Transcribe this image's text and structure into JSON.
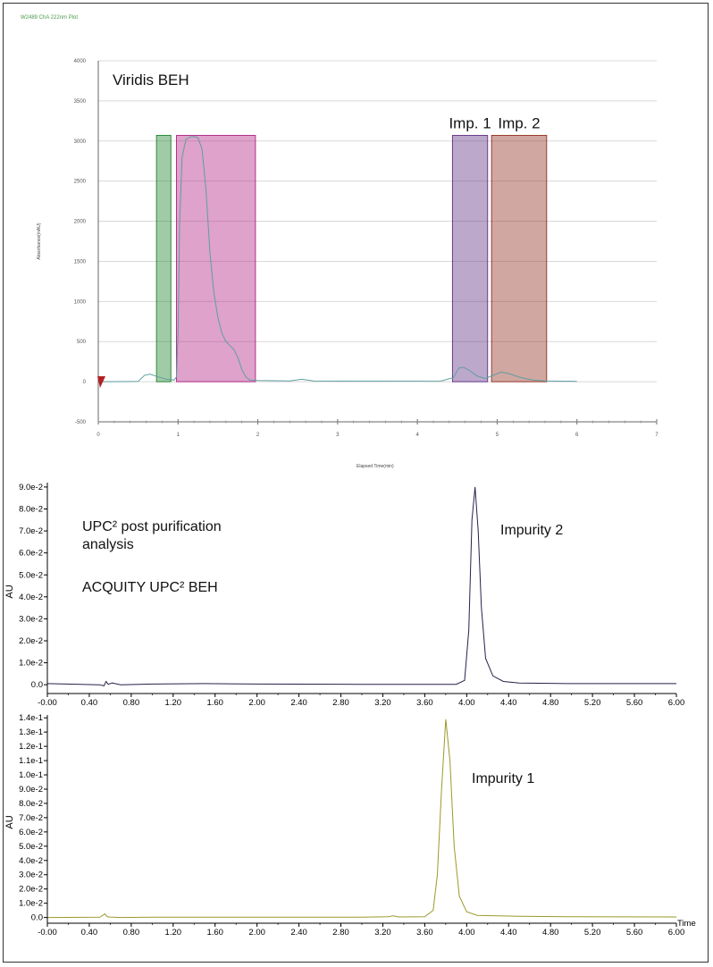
{
  "chart_data": [
    {
      "type": "line",
      "title": "W2489 ChA 222nm Plot",
      "annotation": "Viridis BEH",
      "xlabel": "Elapsed Time(min)",
      "ylabel": "Absorbance(mAU)",
      "xlim": [
        0,
        7
      ],
      "ylim": [
        -500,
        4000
      ],
      "xticks": [
        0,
        1,
        2,
        3,
        4,
        5,
        6,
        7
      ],
      "yticks": [
        -500,
        0,
        500,
        1000,
        1500,
        2000,
        2500,
        3000,
        3500,
        4000
      ],
      "grid": true,
      "color": "#5f9ea0",
      "series": [
        {
          "name": "W2489 ChA 222nm",
          "x": [
            0,
            0.5,
            0.58,
            0.65,
            0.75,
            0.85,
            0.95,
            0.98,
            1.0,
            1.02,
            1.05,
            1.1,
            1.15,
            1.2,
            1.25,
            1.3,
            1.35,
            1.4,
            1.45,
            1.5,
            1.55,
            1.6,
            1.65,
            1.7,
            1.75,
            1.8,
            1.85,
            1.9,
            2.0,
            2.4,
            2.55,
            2.7,
            3.0,
            4.3,
            4.45,
            4.52,
            4.58,
            4.65,
            4.75,
            4.85,
            4.95,
            5.05,
            5.15,
            5.3,
            5.45,
            5.6,
            6.0
          ],
          "y": [
            0,
            5,
            80,
            95,
            60,
            30,
            20,
            60,
            600,
            2000,
            2800,
            3020,
            3050,
            3055,
            3040,
            2900,
            2400,
            1600,
            1100,
            800,
            600,
            500,
            450,
            400,
            300,
            150,
            60,
            20,
            15,
            10,
            30,
            10,
            8,
            10,
            50,
            170,
            180,
            140,
            70,
            40,
            80,
            120,
            100,
            50,
            20,
            10,
            5
          ]
        }
      ],
      "fractions": [
        {
          "name": "",
          "x_start": 0.73,
          "x_end": 0.91,
          "color": "#2e8b3a"
        },
        {
          "name": "",
          "x_start": 0.98,
          "x_end": 1.97,
          "color": "#b5308c"
        },
        {
          "name": "Imp. 1",
          "x_start": 4.44,
          "x_end": 4.88,
          "color": "#6a3d8c"
        },
        {
          "name": "Imp. 2",
          "x_start": 4.93,
          "x_end": 5.62,
          "color": "#9a3b2e"
        }
      ],
      "fraction_top": 3070
    },
    {
      "type": "line",
      "annotation_lines": [
        "UPC² post purification",
        "analysis",
        "ACQUITY UPC² BEH"
      ],
      "peak_label": "Impurity 2",
      "ylabel": "AU",
      "xlim": [
        -0.0,
        6.0
      ],
      "ylim": [
        -0.004,
        0.092
      ],
      "xticks": [
        "-0.00",
        "0.40",
        "0.80",
        "1.20",
        "1.60",
        "2.00",
        "2.40",
        "2.80",
        "3.20",
        "3.60",
        "4.00",
        "4.40",
        "4.80",
        "5.20",
        "5.60",
        "6.00"
      ],
      "yticks": [
        "0.0",
        "1.0e-2",
        "2.0e-2",
        "3.0e-2",
        "4.0e-2",
        "5.0e-2",
        "6.0e-2",
        "7.0e-2",
        "8.0e-2",
        "9.0e-2"
      ],
      "color": "#2a1f4a",
      "series": [
        {
          "name": "Impurity 2",
          "x": [
            0,
            0.5,
            0.54,
            0.56,
            0.58,
            0.62,
            0.7,
            1.0,
            1.5,
            2.0,
            3.0,
            3.9,
            3.98,
            4.02,
            4.05,
            4.08,
            4.11,
            4.14,
            4.18,
            4.25,
            4.35,
            4.5,
            5.0,
            6.0
          ],
          "y": [
            0.0005,
            0.0,
            -0.0005,
            0.0015,
            0.0002,
            0.0008,
            0.0,
            0.0003,
            0.0005,
            0.0003,
            0.0002,
            0.0002,
            0.002,
            0.025,
            0.075,
            0.09,
            0.07,
            0.035,
            0.012,
            0.004,
            0.0015,
            0.0008,
            0.0005,
            0.0005
          ]
        }
      ]
    },
    {
      "type": "line",
      "peak_label": "Impurity 1",
      "ylabel": "AU",
      "xlabel": "Time",
      "xlim": [
        -0.0,
        6.0
      ],
      "ylim": [
        -0.004,
        0.142
      ],
      "xticks": [
        "-0.00",
        "0.40",
        "0.80",
        "1.20",
        "1.60",
        "2.00",
        "2.40",
        "2.80",
        "3.20",
        "3.60",
        "4.00",
        "4.40",
        "4.80",
        "5.20",
        "5.60",
        "6.00"
      ],
      "yticks": [
        "0.0",
        "1.0e-2",
        "2.0e-2",
        "3.0e-2",
        "4.0e-2",
        "5.0e-2",
        "6.0e-2",
        "7.0e-2",
        "8.0e-2",
        "9.0e-2",
        "1.0e-1",
        "1.1e-1",
        "1.2e-1",
        "1.3e-1",
        "1.4e-1"
      ],
      "color": "#9a9a2a",
      "series": [
        {
          "name": "Impurity 1",
          "x": [
            0,
            0.5,
            0.55,
            0.57,
            0.6,
            0.7,
            1.0,
            2.0,
            3.0,
            3.25,
            3.3,
            3.35,
            3.6,
            3.68,
            3.72,
            3.76,
            3.8,
            3.84,
            3.88,
            3.93,
            4.0,
            4.1,
            4.5,
            5.0,
            6.0
          ],
          "y": [
            0.0,
            0.0002,
            0.0025,
            0.0005,
            0.0003,
            0.0,
            0.0002,
            0.0002,
            0.0002,
            0.0005,
            0.0012,
            0.0004,
            0.0005,
            0.005,
            0.03,
            0.09,
            0.139,
            0.11,
            0.05,
            0.015,
            0.004,
            0.0015,
            0.0008,
            0.0005,
            0.0004
          ]
        }
      ]
    }
  ]
}
